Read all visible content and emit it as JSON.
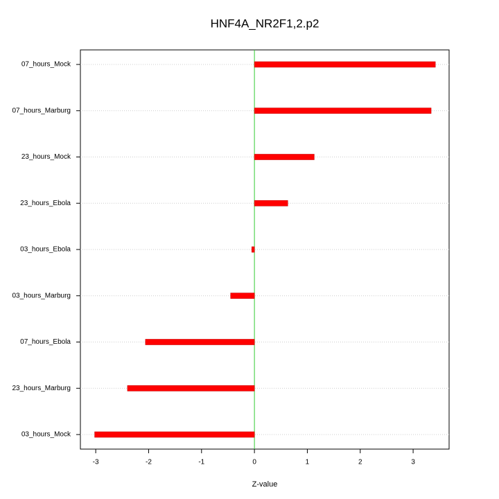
{
  "chart_data": {
    "type": "bar",
    "orientation": "horizontal",
    "title": "HNF4A_NR2F1,2.p2",
    "x_label": "Z-value",
    "categories": [
      "07_hours_Mock",
      "07_hours_Marburg",
      "23_hours_Mock",
      "23_hours_Ebola",
      "03_hours_Ebola",
      "03_hours_Marburg",
      "07_hours_Ebola",
      "23_hours_Marburg",
      "03_hours_Mock"
    ],
    "values": [
      3.42,
      3.34,
      1.13,
      0.63,
      -0.05,
      -0.45,
      -2.06,
      -2.4,
      -3.02
    ],
    "color": "#ff0000",
    "xlim": [
      -3.29,
      3.68
    ],
    "xticks": [
      -3,
      -2,
      -1,
      0,
      1,
      2,
      3
    ],
    "grid": true
  }
}
